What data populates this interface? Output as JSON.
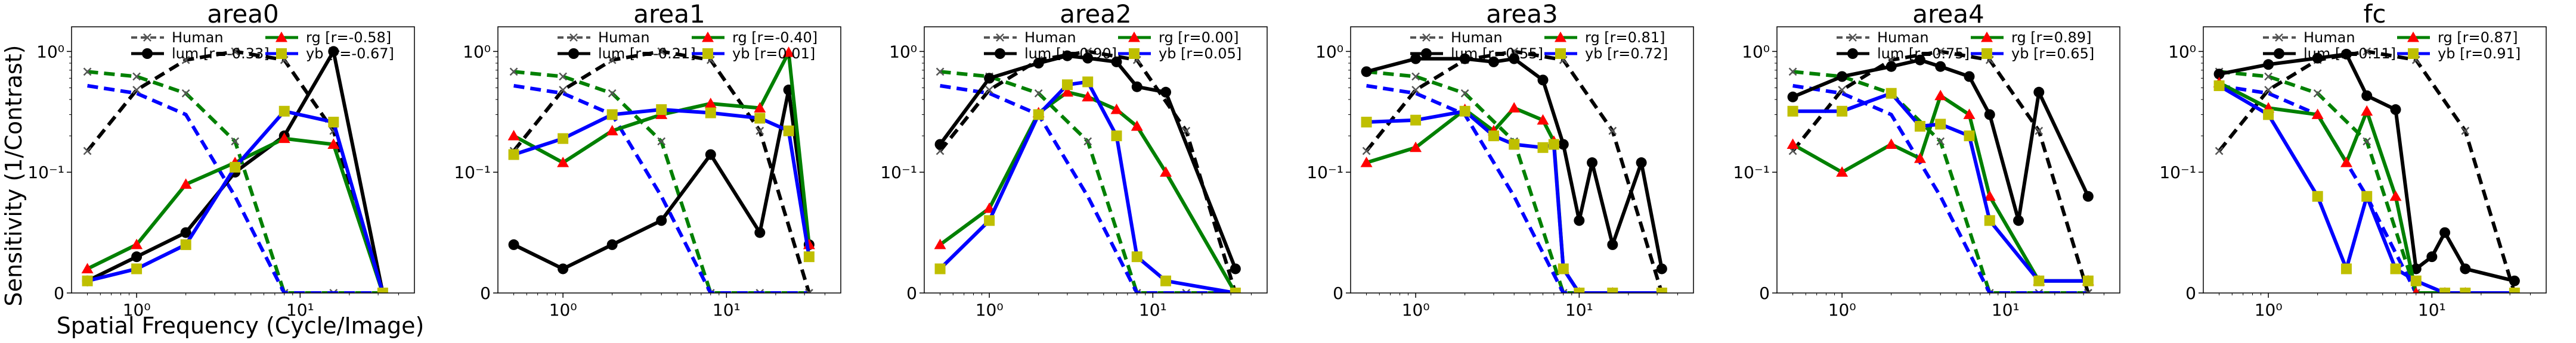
{
  "figure": {
    "ylabel": "Sensitivity (1/Contrast)",
    "xlabel": "Spatial Frequency (Cycle/Image)"
  },
  "chart_data": [
    {
      "type": "line",
      "title": "area0",
      "xscale": "log",
      "yscale": "symlog",
      "xlim": [
        0.4,
        50
      ],
      "ylim": [
        0,
        1.6
      ],
      "yticks": [
        {
          "v": 0,
          "label": "0"
        },
        {
          "v": 0.1,
          "label": "10⁻¹"
        },
        {
          "v": 1,
          "label": "10⁰"
        }
      ],
      "xticks": [
        {
          "v": 1,
          "label": "10⁰"
        },
        {
          "v": 10,
          "label": "10¹"
        }
      ],
      "legend": [
        {
          "key": "human",
          "label": "Human"
        },
        {
          "key": "lum",
          "label": "lum [r=-0.33]"
        },
        {
          "key": "rg",
          "label": "rg   [r=-0.58]"
        },
        {
          "key": "yb",
          "label": "yb   [r=-0.67]"
        }
      ],
      "series": {
        "human_lum": {
          "x": [
            0.5,
            1,
            2,
            4,
            8,
            16,
            32
          ],
          "y": [
            0.15,
            0.48,
            0.85,
            1.0,
            0.85,
            0.22,
            0.0
          ]
        },
        "human_rg": {
          "x": [
            0.5,
            1,
            2,
            4,
            8,
            16,
            32
          ],
          "y": [
            0.68,
            0.62,
            0.45,
            0.18,
            0.0,
            0.0,
            0.0
          ]
        },
        "human_yb": {
          "x": [
            0.5,
            1,
            2,
            4,
            8,
            16,
            32
          ],
          "y": [
            0.52,
            0.45,
            0.3,
            0.08,
            0.0,
            0.0,
            0.0
          ]
        },
        "lum": {
          "x": [
            0.5,
            1,
            2,
            4,
            8,
            16,
            32
          ],
          "y": [
            0.01,
            0.03,
            0.05,
            0.1,
            0.2,
            1.0,
            0.0
          ]
        },
        "rg": {
          "x": [
            0.5,
            1,
            2,
            4,
            8,
            16,
            32
          ],
          "y": [
            0.02,
            0.04,
            0.09,
            0.12,
            0.19,
            0.17,
            0.0
          ]
        },
        "yb": {
          "x": [
            0.5,
            1,
            2,
            4,
            8,
            16,
            32
          ],
          "y": [
            0.01,
            0.02,
            0.04,
            0.11,
            0.32,
            0.26,
            0.0
          ]
        }
      }
    },
    {
      "type": "line",
      "title": "area1",
      "xscale": "log",
      "yscale": "symlog",
      "xlim": [
        0.4,
        50
      ],
      "ylim": [
        0,
        1.6
      ],
      "yticks": [
        {
          "v": 0,
          "label": "0"
        },
        {
          "v": 0.1,
          "label": "10⁻¹"
        },
        {
          "v": 1,
          "label": "10⁰"
        }
      ],
      "xticks": [
        {
          "v": 1,
          "label": "10⁰"
        },
        {
          "v": 10,
          "label": "10¹"
        }
      ],
      "legend": [
        {
          "key": "human",
          "label": "Human"
        },
        {
          "key": "lum",
          "label": "lum [r=-0.21]"
        },
        {
          "key": "rg",
          "label": "rg   [r=-0.40]"
        },
        {
          "key": "yb",
          "label": "yb   [r=0.01]"
        }
      ],
      "series": {
        "human_lum": {
          "x": [
            0.5,
            1,
            2,
            4,
            8,
            16,
            32
          ],
          "y": [
            0.15,
            0.48,
            0.85,
            1.0,
            0.85,
            0.22,
            0.0
          ]
        },
        "human_rg": {
          "x": [
            0.5,
            1,
            2,
            4,
            8,
            16,
            32
          ],
          "y": [
            0.68,
            0.62,
            0.45,
            0.18,
            0.0,
            0.0,
            0.0
          ]
        },
        "human_yb": {
          "x": [
            0.5,
            1,
            2,
            4,
            8,
            16,
            32
          ],
          "y": [
            0.52,
            0.45,
            0.3,
            0.08,
            0.0,
            0.0,
            0.0
          ]
        },
        "lum": {
          "x": [
            0.5,
            1,
            2,
            4,
            8,
            16,
            24,
            32
          ],
          "y": [
            0.04,
            0.02,
            0.04,
            0.06,
            0.14,
            0.05,
            0.48,
            0.04
          ]
        },
        "rg": {
          "x": [
            0.5,
            1,
            2,
            4,
            8,
            16,
            24,
            32
          ],
          "y": [
            0.2,
            0.12,
            0.22,
            0.3,
            0.37,
            0.34,
            0.98,
            0.04
          ]
        },
        "yb": {
          "x": [
            0.5,
            1,
            2,
            4,
            8,
            16,
            24,
            32
          ],
          "y": [
            0.14,
            0.19,
            0.3,
            0.33,
            0.31,
            0.28,
            0.22,
            0.03
          ]
        }
      }
    },
    {
      "type": "line",
      "title": "area2",
      "xscale": "log",
      "yscale": "symlog",
      "xlim": [
        0.4,
        50
      ],
      "ylim": [
        0,
        1.6
      ],
      "yticks": [
        {
          "v": 0,
          "label": "0"
        },
        {
          "v": 0.1,
          "label": "10⁻¹"
        },
        {
          "v": 1,
          "label": "10⁰"
        }
      ],
      "xticks": [
        {
          "v": 1,
          "label": "10⁰"
        },
        {
          "v": 10,
          "label": "10¹"
        }
      ],
      "legend": [
        {
          "key": "human",
          "label": "Human"
        },
        {
          "key": "lum",
          "label": "lum [r=0.90]"
        },
        {
          "key": "rg",
          "label": "rg   [r=0.00]"
        },
        {
          "key": "yb",
          "label": "yb   [r=0.05]"
        }
      ],
      "series": {
        "human_lum": {
          "x": [
            0.5,
            1,
            2,
            4,
            8,
            16,
            32
          ],
          "y": [
            0.15,
            0.48,
            0.85,
            1.0,
            0.85,
            0.22,
            0.0
          ]
        },
        "human_rg": {
          "x": [
            0.5,
            1,
            2,
            4,
            8,
            16,
            32
          ],
          "y": [
            0.68,
            0.62,
            0.45,
            0.18,
            0.0,
            0.0,
            0.0
          ]
        },
        "human_yb": {
          "x": [
            0.5,
            1,
            2,
            4,
            8,
            16,
            32
          ],
          "y": [
            0.52,
            0.45,
            0.3,
            0.08,
            0.0,
            0.0,
            0.0
          ]
        },
        "lum": {
          "x": [
            0.5,
            1,
            2,
            3,
            4,
            6,
            8,
            12,
            32
          ],
          "y": [
            0.17,
            0.6,
            0.8,
            0.92,
            0.88,
            0.82,
            0.51,
            0.46,
            0.02
          ]
        },
        "rg": {
          "x": [
            0.5,
            1,
            2,
            3,
            4,
            6,
            8,
            12,
            32
          ],
          "y": [
            0.04,
            0.07,
            0.31,
            0.46,
            0.42,
            0.33,
            0.24,
            0.1,
            0.0
          ]
        },
        "yb": {
          "x": [
            0.5,
            1,
            2,
            3,
            4,
            6,
            8,
            12,
            32
          ],
          "y": [
            0.02,
            0.06,
            0.3,
            0.53,
            0.56,
            0.2,
            0.03,
            0.01,
            0.0
          ]
        }
      }
    },
    {
      "type": "line",
      "title": "area3",
      "xscale": "log",
      "yscale": "symlog",
      "xlim": [
        0.4,
        50
      ],
      "ylim": [
        0,
        1.6
      ],
      "yticks": [
        {
          "v": 0,
          "label": "0"
        },
        {
          "v": 0.1,
          "label": "10⁻¹"
        },
        {
          "v": 1,
          "label": "10⁰"
        }
      ],
      "xticks": [
        {
          "v": 1,
          "label": "10⁰"
        },
        {
          "v": 10,
          "label": "10¹"
        }
      ],
      "legend": [
        {
          "key": "human",
          "label": "Human"
        },
        {
          "key": "lum",
          "label": "lum [r=0.55]"
        },
        {
          "key": "rg",
          "label": "rg   [r=0.81]"
        },
        {
          "key": "yb",
          "label": "yb   [r=0.72]"
        }
      ],
      "series": {
        "human_lum": {
          "x": [
            0.5,
            1,
            2,
            4,
            8,
            16,
            32
          ],
          "y": [
            0.15,
            0.48,
            0.85,
            1.0,
            0.85,
            0.22,
            0.0
          ]
        },
        "human_rg": {
          "x": [
            0.5,
            1,
            2,
            4,
            8,
            16,
            32
          ],
          "y": [
            0.68,
            0.62,
            0.45,
            0.18,
            0.0,
            0.0,
            0.0
          ]
        },
        "human_yb": {
          "x": [
            0.5,
            1,
            2,
            4,
            8,
            16,
            32
          ],
          "y": [
            0.52,
            0.45,
            0.3,
            0.08,
            0.0,
            0.0,
            0.0
          ]
        },
        "lum": {
          "x": [
            0.5,
            1,
            2,
            3,
            4,
            6,
            8,
            10,
            12,
            16,
            24,
            32
          ],
          "y": [
            0.68,
            0.87,
            0.87,
            0.82,
            0.87,
            0.58,
            0.17,
            0.06,
            0.12,
            0.04,
            0.12,
            0.02
          ]
        },
        "rg": {
          "x": [
            0.5,
            1,
            2,
            3,
            4,
            6,
            7,
            8,
            10,
            16,
            32
          ],
          "y": [
            0.12,
            0.16,
            0.33,
            0.22,
            0.34,
            0.27,
            0.18,
            0.02,
            0.0,
            0.0,
            0.0
          ]
        },
        "yb": {
          "x": [
            0.5,
            1,
            2,
            3,
            4,
            6,
            7,
            8,
            10,
            16,
            32
          ],
          "y": [
            0.26,
            0.27,
            0.32,
            0.2,
            0.17,
            0.16,
            0.17,
            0.02,
            0.0,
            0.0,
            0.0
          ]
        }
      }
    },
    {
      "type": "line",
      "title": "area4",
      "xscale": "log",
      "yscale": "symlog",
      "xlim": [
        0.4,
        50
      ],
      "ylim": [
        0,
        1.6
      ],
      "yticks": [
        {
          "v": 0,
          "label": "0"
        },
        {
          "v": 0.1,
          "label": "10⁻¹"
        },
        {
          "v": 1,
          "label": "10⁰"
        }
      ],
      "xticks": [
        {
          "v": 1,
          "label": "10⁰"
        },
        {
          "v": 10,
          "label": "10¹"
        }
      ],
      "legend": [
        {
          "key": "human",
          "label": "Human"
        },
        {
          "key": "lum",
          "label": "lum [r=0.75]"
        },
        {
          "key": "rg",
          "label": "rg   [r=0.89]"
        },
        {
          "key": "yb",
          "label": "yb   [r=0.65]"
        }
      ],
      "series": {
        "human_lum": {
          "x": [
            0.5,
            1,
            2,
            4,
            8,
            16,
            32
          ],
          "y": [
            0.15,
            0.48,
            0.85,
            1.0,
            0.85,
            0.22,
            0.0
          ]
        },
        "human_rg": {
          "x": [
            0.5,
            1,
            2,
            4,
            8,
            16,
            32
          ],
          "y": [
            0.68,
            0.62,
            0.45,
            0.18,
            0.0,
            0.0,
            0.0
          ]
        },
        "human_yb": {
          "x": [
            0.5,
            1,
            2,
            4,
            8,
            16,
            32
          ],
          "y": [
            0.52,
            0.45,
            0.3,
            0.08,
            0.0,
            0.0,
            0.0
          ]
        },
        "lum": {
          "x": [
            0.5,
            1,
            2,
            3,
            4,
            6,
            8,
            12,
            16,
            32
          ],
          "y": [
            0.42,
            0.62,
            0.75,
            0.85,
            0.75,
            0.62,
            0.3,
            0.06,
            0.46,
            0.08
          ]
        },
        "rg": {
          "x": [
            0.5,
            1,
            2,
            3,
            4,
            6,
            8,
            16,
            32
          ],
          "y": [
            0.17,
            0.1,
            0.17,
            0.13,
            0.43,
            0.3,
            0.08,
            0.01,
            0.01
          ]
        },
        "yb": {
          "x": [
            0.5,
            1,
            2,
            3,
            4,
            6,
            8,
            16,
            32
          ],
          "y": [
            0.32,
            0.32,
            0.45,
            0.24,
            0.25,
            0.2,
            0.06,
            0.01,
            0.01
          ]
        }
      }
    },
    {
      "type": "line",
      "title": "fc",
      "xscale": "log",
      "yscale": "symlog",
      "xlim": [
        0.4,
        50
      ],
      "ylim": [
        0,
        1.6
      ],
      "yticks": [
        {
          "v": 0,
          "label": "0"
        },
        {
          "v": 0.1,
          "label": "10⁻¹"
        },
        {
          "v": 1,
          "label": "10⁰"
        }
      ],
      "xticks": [
        {
          "v": 1,
          "label": "10⁰"
        },
        {
          "v": 10,
          "label": "10¹"
        }
      ],
      "legend": [
        {
          "key": "human",
          "label": "Human"
        },
        {
          "key": "lum",
          "label": "lum [r=0.11]"
        },
        {
          "key": "rg",
          "label": "rg   [r=0.87]"
        },
        {
          "key": "yb",
          "label": "yb   [r=0.91]"
        }
      ],
      "series": {
        "human_lum": {
          "x": [
            0.5,
            1,
            2,
            4,
            8,
            16,
            32
          ],
          "y": [
            0.15,
            0.48,
            0.85,
            1.0,
            0.85,
            0.22,
            0.0
          ]
        },
        "human_rg": {
          "x": [
            0.5,
            1,
            2,
            4,
            8,
            16,
            32
          ],
          "y": [
            0.68,
            0.62,
            0.45,
            0.18,
            0.0,
            0.0,
            0.0
          ]
        },
        "human_yb": {
          "x": [
            0.5,
            1,
            2,
            4,
            8,
            16,
            32
          ],
          "y": [
            0.52,
            0.45,
            0.3,
            0.08,
            0.0,
            0.0,
            0.0
          ]
        },
        "lum": {
          "x": [
            0.5,
            1,
            2,
            3,
            4,
            6,
            8,
            10,
            12,
            16,
            32
          ],
          "y": [
            0.65,
            0.78,
            0.88,
            0.95,
            0.43,
            0.33,
            0.02,
            0.03,
            0.05,
            0.02,
            0.01
          ]
        },
        "rg": {
          "x": [
            0.5,
            1,
            2,
            3,
            4,
            6,
            8,
            12,
            16,
            32
          ],
          "y": [
            0.55,
            0.34,
            0.3,
            0.12,
            0.32,
            0.08,
            0.0,
            0.0,
            0.0,
            0.0
          ]
        },
        "yb": {
          "x": [
            0.5,
            1,
            2,
            3,
            4,
            6,
            8,
            12,
            16,
            32
          ],
          "y": [
            0.52,
            0.3,
            0.08,
            0.02,
            0.08,
            0.02,
            0.01,
            0.0,
            0.0,
            0.0
          ]
        }
      }
    }
  ],
  "colors": {
    "human": "#555555",
    "lum": "#000000",
    "rg_line": "#008000",
    "rg_marker": "#ff0000",
    "yb_line": "#0000ff",
    "yb_marker": "#bfbf00",
    "frame": "#000000",
    "background": "#ffffff"
  }
}
